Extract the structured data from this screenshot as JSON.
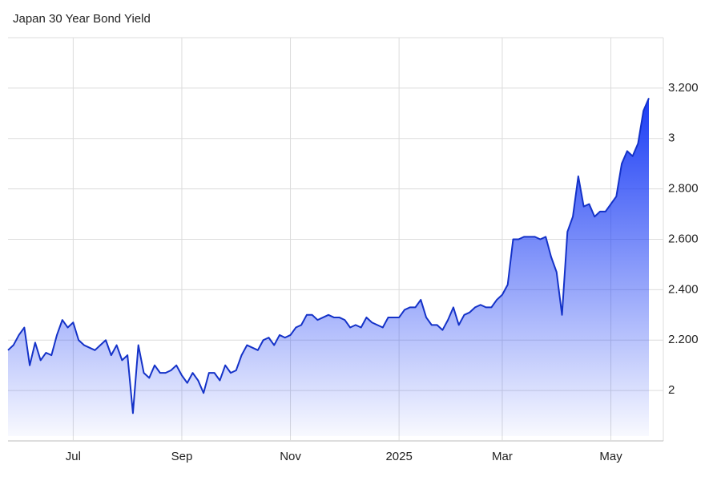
{
  "chart_data": {
    "type": "area",
    "title": "Japan 30 Year Bond Yield",
    "categories": [
      null,
      null,
      null,
      null,
      null,
      null,
      null,
      null,
      null,
      null,
      null,
      null,
      "Jul",
      null,
      null,
      null,
      null,
      null,
      null,
      null,
      null,
      null,
      null,
      null,
      null,
      null,
      null,
      null,
      null,
      null,
      null,
      null,
      "Sep",
      null,
      null,
      null,
      null,
      null,
      null,
      null,
      null,
      null,
      null,
      null,
      null,
      null,
      null,
      null,
      null,
      null,
      null,
      null,
      "Nov",
      null,
      null,
      null,
      null,
      null,
      null,
      null,
      null,
      null,
      null,
      null,
      null,
      null,
      null,
      null,
      null,
      null,
      null,
      null,
      "2025",
      null,
      null,
      null,
      null,
      null,
      null,
      null,
      null,
      null,
      null,
      null,
      null,
      null,
      null,
      null,
      null,
      null,
      null,
      "Mar",
      null,
      null,
      null,
      null,
      null,
      null,
      null,
      null,
      null,
      null,
      null,
      null,
      null,
      null,
      null,
      null,
      null,
      null,
      null,
      "May",
      null,
      null,
      null,
      null,
      null,
      null,
      null
    ],
    "series": [
      {
        "name": "Japan 30 Year Bond Yield",
        "color": "#1432c8",
        "values": [
          2.16,
          2.18,
          2.22,
          2.25,
          2.1,
          2.19,
          2.12,
          2.15,
          2.14,
          2.22,
          2.28,
          2.25,
          2.27,
          2.2,
          2.18,
          2.17,
          2.16,
          2.18,
          2.2,
          2.14,
          2.18,
          2.12,
          2.14,
          1.91,
          2.18,
          2.07,
          2.05,
          2.1,
          2.07,
          2.07,
          2.08,
          2.1,
          2.06,
          2.03,
          2.07,
          2.04,
          1.99,
          2.07,
          2.07,
          2.04,
          2.1,
          2.07,
          2.08,
          2.14,
          2.18,
          2.17,
          2.16,
          2.2,
          2.21,
          2.18,
          2.22,
          2.21,
          2.22,
          2.25,
          2.26,
          2.3,
          2.3,
          2.28,
          2.29,
          2.3,
          2.29,
          2.29,
          2.28,
          2.25,
          2.26,
          2.25,
          2.29,
          2.27,
          2.26,
          2.25,
          2.29,
          2.29,
          2.29,
          2.32,
          2.33,
          2.33,
          2.36,
          2.29,
          2.26,
          2.26,
          2.24,
          2.28,
          2.33,
          2.26,
          2.3,
          2.31,
          2.33,
          2.34,
          2.33,
          2.33,
          2.36,
          2.38,
          2.42,
          2.6,
          2.6,
          2.61,
          2.61,
          2.61,
          2.6,
          2.61,
          2.53,
          2.47,
          2.3,
          2.63,
          2.69,
          2.85,
          2.73,
          2.74,
          2.69,
          2.71,
          2.71,
          2.74,
          2.77,
          2.9,
          2.95,
          2.93,
          2.98,
          3.11,
          3.16
        ]
      }
    ],
    "ylim": [
      1.8,
      3.4
    ],
    "yticks": [
      2,
      {
        "value": 2.2,
        "label": "2.200"
      },
      {
        "value": 2.4,
        "label": "2.400"
      },
      {
        "value": 2.6,
        "label": "2.600"
      },
      {
        "value": 2.8,
        "label": "2.800"
      },
      3,
      {
        "value": 3.2,
        "label": "3.200"
      }
    ],
    "grid": true
  }
}
